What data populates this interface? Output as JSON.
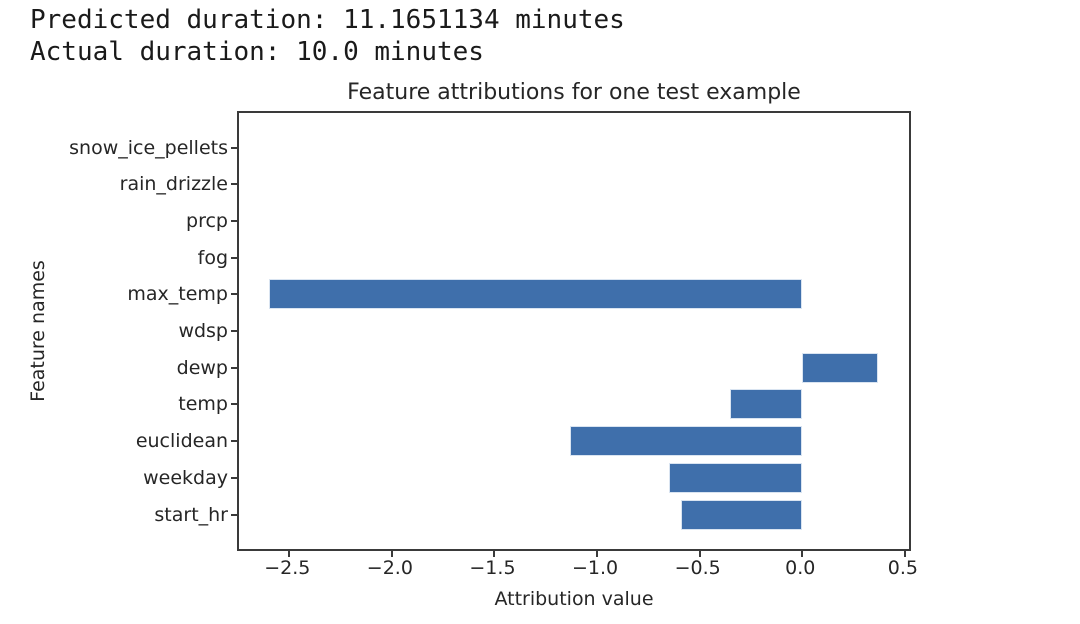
{
  "header": {
    "line1": "Predicted duration: 11.1651134 minutes",
    "line2": "Actual duration: 10.0 minutes",
    "predicted_minutes": 11.1651134,
    "actual_minutes": 10.0
  },
  "chart_data": {
    "type": "bar",
    "orientation": "horizontal",
    "title": "Feature attributions for one test example",
    "xlabel": "Attribution value",
    "ylabel": "Feature names",
    "categories_top_to_bottom": [
      "snow_ice_pellets",
      "rain_drizzle",
      "prcp",
      "fog",
      "max_temp",
      "wdsp",
      "dewp",
      "temp",
      "euclidean",
      "weekday",
      "start_hr"
    ],
    "values_top_to_bottom": [
      0,
      0,
      0,
      0,
      -2.6,
      0,
      0.37,
      -0.35,
      -1.13,
      -0.65,
      -0.59
    ],
    "xlim": [
      -2.745,
      0.52
    ],
    "x_ticks": [
      -2.5,
      -2.0,
      -1.5,
      -1.0,
      -0.5,
      0.0,
      0.5
    ],
    "x_tick_labels": [
      "−2.5",
      "−2.0",
      "−1.5",
      "−1.0",
      "−0.5",
      "0.0",
      "0.5"
    ],
    "grid": false,
    "legend_position": "none",
    "colors": {
      "bar_fill": "#3F6FAB",
      "bar_edge": "#D9E4F1",
      "spine": "#3a3a3a",
      "text": "#262626"
    }
  }
}
